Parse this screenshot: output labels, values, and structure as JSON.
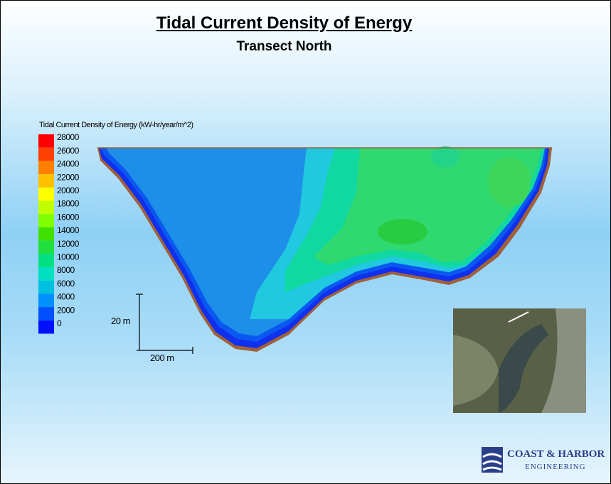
{
  "header": {
    "title": "Tidal Current Density of Energy",
    "subtitle": "Transect North"
  },
  "legend": {
    "title": "Tidal Current Density of Energy (kW-hr/year/m^2)",
    "entries": [
      {
        "label": "28000",
        "color": "#ff0000"
      },
      {
        "label": "26000",
        "color": "#ff4000"
      },
      {
        "label": "24000",
        "color": "#ff8000"
      },
      {
        "label": "22000",
        "color": "#ffc000"
      },
      {
        "label": "20000",
        "color": "#ffff00"
      },
      {
        "label": "18000",
        "color": "#c0ff00"
      },
      {
        "label": "16000",
        "color": "#80ff00"
      },
      {
        "label": "14000",
        "color": "#40e000"
      },
      {
        "label": "12000",
        "color": "#20e040"
      },
      {
        "label": "10000",
        "color": "#00e080"
      },
      {
        "label": "8000",
        "color": "#00e0c0"
      },
      {
        "label": "6000",
        "color": "#00c0e0"
      },
      {
        "label": "4000",
        "color": "#0090ff"
      },
      {
        "label": "2000",
        "color": "#0050ff"
      },
      {
        "label": "0",
        "color": "#0010ff"
      }
    ]
  },
  "scale": {
    "vertical": "20 m",
    "horizontal": "200 m"
  },
  "logo": {
    "name": "COAST & HARBOR",
    "sub": "ENGINEERING"
  }
}
